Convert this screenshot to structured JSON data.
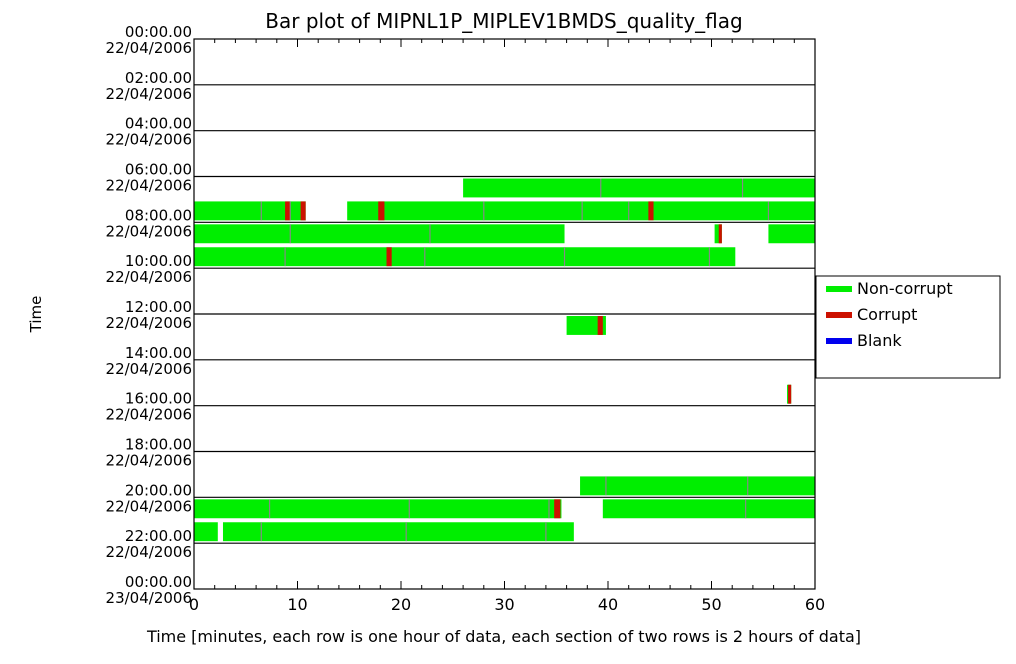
{
  "chart_data": {
    "type": "bar",
    "title": "Bar plot of MIPNL1P_MIPLEV1BMDS_quality_flag",
    "xlabel": "Time [minutes, each row is one hour of data, each section of two rows is 2 hours of data]",
    "ylabel": "Time",
    "xlim": [
      0,
      60
    ],
    "x_ticks": [
      "0",
      "10",
      "20",
      "30",
      "40",
      "50",
      "60"
    ],
    "y_tick_labels": [
      [
        "00:00.00",
        "22/04/2006"
      ],
      [
        "02:00.00",
        "22/04/2006"
      ],
      [
        "04:00.00",
        "22/04/2006"
      ],
      [
        "06:00.00",
        "22/04/2006"
      ],
      [
        "08:00.00",
        "22/04/2006"
      ],
      [
        "10:00.00",
        "22/04/2006"
      ],
      [
        "12:00.00",
        "22/04/2006"
      ],
      [
        "14:00.00",
        "22/04/2006"
      ],
      [
        "16:00.00",
        "22/04/2006"
      ],
      [
        "18:00.00",
        "22/04/2006"
      ],
      [
        "20:00.00",
        "22/04/2006"
      ],
      [
        "22:00.00",
        "22/04/2006"
      ],
      [
        "00:00.00",
        "23/04/2006"
      ]
    ],
    "legend": [
      {
        "name": "Non-corrupt",
        "color": "#00ee00"
      },
      {
        "name": "Corrupt",
        "color": "#cc1100"
      },
      {
        "name": "Blank",
        "color": "#0000ee"
      }
    ],
    "legend_position": "right",
    "colors": {
      "non_corrupt": "#00ee00",
      "corrupt": "#cc1100",
      "blank": "#0000ee",
      "separator": "#888888"
    },
    "rows": [
      {
        "hour": 6,
        "segments": [
          {
            "start": 26,
            "end": 60,
            "status": "non_corrupt"
          }
        ],
        "separators": [
          39.3,
          53
        ]
      },
      {
        "hour": 7,
        "segments": [
          {
            "start": 0,
            "end": 60,
            "status": "non_corrupt"
          },
          {
            "start": 8.8,
            "end": 9.3,
            "status": "corrupt"
          },
          {
            "start": 10.3,
            "end": 10.8,
            "status": "corrupt"
          },
          {
            "start": 17.8,
            "end": 18.4,
            "status": "corrupt"
          },
          {
            "start": 43.9,
            "end": 44.4,
            "status": "corrupt"
          }
        ],
        "gaps": [
          [
            10.8,
            14.8
          ]
        ],
        "separators": [
          6.5,
          9.3,
          28,
          37.5,
          42,
          55.5
        ]
      },
      {
        "hour": 8,
        "segments": [
          {
            "start": 0,
            "end": 35.8,
            "status": "non_corrupt"
          },
          {
            "start": 50.3,
            "end": 51,
            "status": "non_corrupt"
          },
          {
            "start": 50.7,
            "end": 51,
            "status": "corrupt"
          },
          {
            "start": 55.5,
            "end": 60,
            "status": "non_corrupt"
          }
        ],
        "separators": [
          9.3,
          22.8
        ]
      },
      {
        "hour": 9,
        "segments": [
          {
            "start": 0,
            "end": 52.3,
            "status": "non_corrupt"
          },
          {
            "start": 18.6,
            "end": 19.1,
            "status": "corrupt"
          }
        ],
        "separators": [
          8.8,
          22.3,
          35.8,
          49.8
        ]
      },
      {
        "hour": 12,
        "segments": [
          {
            "start": 36,
            "end": 39.8,
            "status": "non_corrupt"
          },
          {
            "start": 39,
            "end": 39.5,
            "status": "corrupt"
          }
        ],
        "separators": []
      },
      {
        "hour": 15,
        "segments": [
          {
            "start": 57.3,
            "end": 57.7,
            "status": "non_corrupt"
          },
          {
            "start": 57.4,
            "end": 57.7,
            "status": "corrupt"
          }
        ],
        "separators": []
      },
      {
        "hour": 19,
        "segments": [
          {
            "start": 37.3,
            "end": 60,
            "status": "non_corrupt"
          }
        ],
        "separators": [
          39.8,
          53.5
        ]
      },
      {
        "hour": 20,
        "segments": [
          {
            "start": 0,
            "end": 35.5,
            "status": "non_corrupt"
          },
          {
            "start": 34.8,
            "end": 35.4,
            "status": "corrupt"
          },
          {
            "start": 39.5,
            "end": 60,
            "status": "non_corrupt"
          }
        ],
        "separators": [
          7.3,
          20.8,
          34.3,
          53.3
        ]
      },
      {
        "hour": 21,
        "segments": [
          {
            "start": 0,
            "end": 36.7,
            "status": "non_corrupt"
          }
        ],
        "gaps": [
          [
            2.3,
            2.8
          ]
        ],
        "separators": [
          6.5,
          20.5,
          34
        ]
      }
    ]
  }
}
